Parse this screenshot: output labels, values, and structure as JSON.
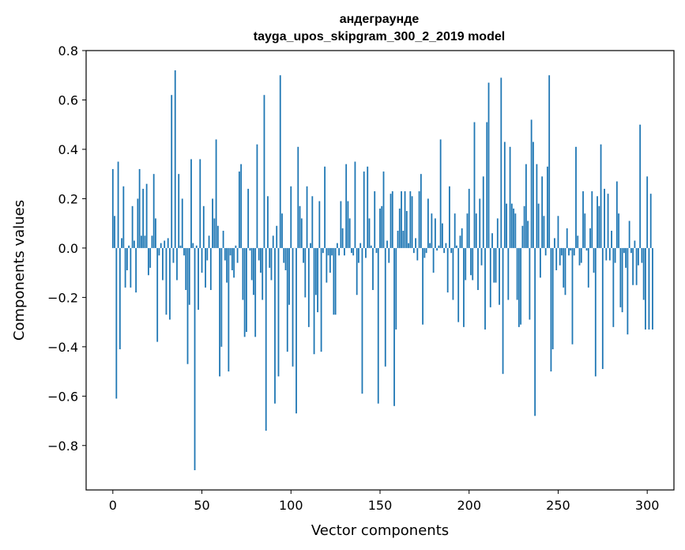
{
  "chart_data": {
    "type": "bar",
    "title_line1": "андеграунде",
    "title_line2": "tayga_upos_skipgram_300_2_2019 model",
    "xlabel": "Vector components",
    "ylabel": "Components values",
    "xlim": [
      -15,
      315
    ],
    "ylim": [
      -0.98,
      0.8
    ],
    "xticks": [
      0,
      50,
      100,
      150,
      200,
      250,
      300
    ],
    "yticks": [
      0.8,
      0.6,
      0.4,
      0.2,
      0.0,
      -0.2,
      -0.4,
      -0.6,
      -0.8
    ],
    "ytick_labels": [
      "0.8",
      "0.6",
      "0.4",
      "0.2",
      "0.0",
      "−0.2",
      "−0.4",
      "−0.6",
      "−0.8"
    ],
    "bar_color": "#1f77b4",
    "grid": false,
    "values": [
      0.32,
      0.13,
      -0.61,
      0.35,
      -0.41,
      0.04,
      0.25,
      -0.16,
      -0.09,
      0.01,
      -0.16,
      0.17,
      0.03,
      -0.18,
      0.2,
      0.32,
      0.05,
      0.24,
      0.05,
      0.26,
      -0.11,
      -0.08,
      0.05,
      0.3,
      0.12,
      -0.38,
      -0.03,
      0.02,
      -0.13,
      0.03,
      -0.27,
      0.04,
      -0.29,
      0.62,
      -0.06,
      0.72,
      -0.13,
      0.3,
      0.01,
      0.2,
      -0.03,
      -0.17,
      -0.47,
      -0.23,
      0.36,
      0.02,
      -0.9,
      0.01,
      -0.25,
      0.36,
      -0.1,
      0.17,
      -0.16,
      -0.05,
      0.05,
      -0.17,
      0.2,
      0.12,
      0.44,
      0.09,
      -0.52,
      -0.4,
      0.07,
      -0.05,
      -0.14,
      -0.5,
      -0.03,
      -0.09,
      -0.12,
      0.01,
      -0.06,
      0.31,
      0.34,
      -0.21,
      -0.36,
      -0.34,
      0.24,
      -0.01,
      -0.13,
      -0.19,
      -0.36,
      0.42,
      -0.05,
      -0.1,
      -0.21,
      0.62,
      -0.74,
      0.21,
      -0.08,
      -0.13,
      0.05,
      -0.63,
      0.09,
      -0.52,
      0.7,
      0.14,
      -0.06,
      -0.09,
      -0.42,
      -0.23,
      0.25,
      -0.48,
      0.0,
      -0.67,
      0.41,
      0.17,
      0.12,
      -0.06,
      -0.2,
      0.25,
      -0.32,
      0.02,
      0.21,
      -0.43,
      -0.19,
      -0.26,
      0.19,
      -0.42,
      -0.02,
      0.33,
      -0.14,
      -0.03,
      -0.1,
      -0.03,
      -0.27,
      -0.27,
      0.02,
      -0.03,
      0.19,
      0.08,
      -0.03,
      0.34,
      0.19,
      0.12,
      -0.02,
      -0.03,
      0.35,
      -0.19,
      -0.06,
      0.02,
      -0.59,
      0.31,
      -0.04,
      0.33,
      0.12,
      0.01,
      -0.17,
      0.23,
      -0.02,
      -0.63,
      0.16,
      0.17,
      0.31,
      -0.48,
      0.03,
      -0.06,
      0.22,
      0.23,
      -0.64,
      -0.33,
      0.07,
      0.16,
      0.23,
      0.07,
      0.23,
      0.15,
      0.02,
      0.23,
      0.21,
      -0.02,
      0.04,
      -0.05,
      0.23,
      0.3,
      -0.31,
      -0.04,
      -0.02,
      0.2,
      0.02,
      0.14,
      -0.1,
      0.12,
      -0.01,
      0.01,
      0.44,
      0.1,
      -0.02,
      0.02,
      -0.18,
      0.25,
      -0.02,
      -0.21,
      0.14,
      0.01,
      -0.3,
      0.05,
      0.08,
      -0.32,
      -0.13,
      0.14,
      0.24,
      -0.11,
      -0.13,
      0.51,
      0.14,
      -0.17,
      0.2,
      -0.07,
      0.29,
      -0.33,
      0.51,
      0.67,
      -0.24,
      0.06,
      -0.14,
      -0.14,
      0.12,
      -0.23,
      0.69,
      -0.51,
      0.43,
      0.18,
      -0.21,
      0.41,
      0.18,
      0.16,
      0.14,
      -0.21,
      -0.32,
      -0.31,
      0.09,
      0.17,
      0.34,
      0.11,
      -0.29,
      0.52,
      0.43,
      -0.68,
      0.34,
      0.18,
      -0.12,
      0.29,
      0.13,
      -0.03,
      0.33,
      0.7,
      -0.5,
      -0.41,
      0.04,
      -0.09,
      0.13,
      -0.07,
      -0.03,
      -0.16,
      -0.19,
      0.08,
      -0.03,
      -0.01,
      -0.39,
      -0.03,
      0.41,
      0.05,
      -0.07,
      -0.06,
      0.23,
      0.14,
      -0.01,
      -0.16,
      0.08,
      0.23,
      -0.1,
      -0.52,
      0.21,
      0.17,
      0.42,
      -0.49,
      0.24,
      -0.05,
      0.22,
      -0.05,
      0.07,
      -0.32,
      -0.06,
      0.27,
      0.14,
      -0.24,
      -0.26,
      -0.02,
      -0.08,
      -0.35,
      0.11,
      -0.02,
      -0.15,
      0.03,
      -0.15,
      -0.07,
      0.5,
      -0.06,
      -0.21,
      -0.33,
      0.29,
      -0.33,
      0.22,
      -0.33
    ]
  }
}
